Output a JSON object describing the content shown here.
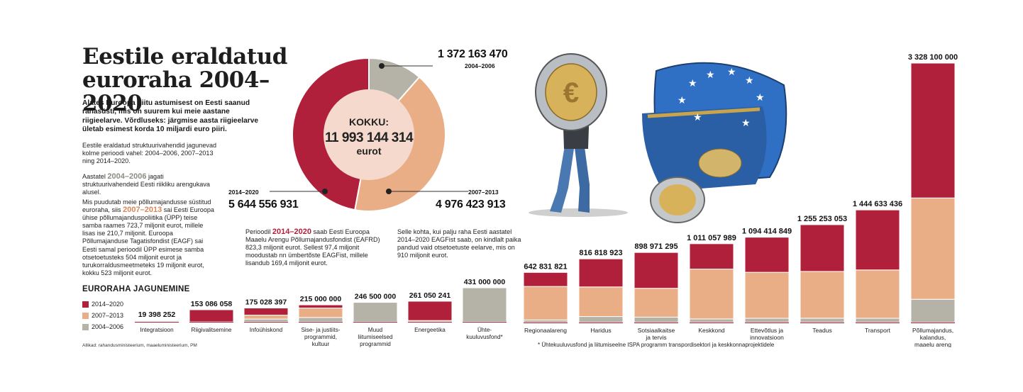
{
  "title": "Eestile eraldatud euroraha 2004–2020",
  "intro": "Alates Euroopa Liitu astumisest on Eesti saanud rahasüsti, mis on suurem kui meie aastane riigieelarve. Võrdluseks: järgmise aasta riigieelarve ületab esimest korda 10 miljardi euro piiri.",
  "p1": "Eestile eraldatud struktuurivahendid jagunevad kolme perioodi vahel: 2004–2006, 2007–2013 ning 2014–2020.",
  "p2": {
    "before": "Aastatel ",
    "highlight": "2004–2006",
    "after": " jagati struktuurivahendeid Eesti riikliku arengukava alusel."
  },
  "p3": {
    "before": "Mis puudutab meie põllumajandusse süstitud euroraha, siis ",
    "highlight": "2007–2013",
    "after": " sai Eesti Euroopa ühise põllumajanduspoliitika (ÜPP) teise samba raames 723,7 miljonit eurot, millele lisas ise 210,7 miljonit. Euroopa Põllumajanduse Tagatisfondist (EAGF) sai Eesti samal perioodil ÜPP esimese samba otsetoetusteks 504 miljonit eurot ja turukorraldusmeetmeteks 19 miljonit eurot, kokku  523 miljonit eurot."
  },
  "p4": {
    "before": "Perioodil ",
    "highlight": "2014–2020",
    "after": " saab Eesti Euroopa Maaelu Arengu Põllumajandusfondist (EAFRD) 823,3 miljonit eurot. Sellest 97,4 miljonit moodustab nn ümbertõste EAGFist, millele lisandub 169,4 miljonit eurot."
  },
  "p5": "Selle kohta, kui palju raha Eesti aastatel 2014–2020 EAGFist saab, on kindlalt paika pandud vaid otsetoetuste eelarve, mis on 910 miljonit eurot.",
  "breakdown_title": "EURORAHA JAGUNEMINE",
  "legend": [
    {
      "label": "2014–2020",
      "color": "#b0203a"
    },
    {
      "label": "2007–2013",
      "color": "#e9ae86"
    },
    {
      "label": "2004–2006",
      "color": "#b5b3a8"
    }
  ],
  "sources": "Allikad: rahandusministeerium, maaeluministeerium, PM",
  "footnote": "* Ühtekuuluvusfond ja liitumiseelne ISPA programm transpordisektori ja keskkonnaprojektidele",
  "donut": {
    "total_label": "KOKKU:",
    "total_value": "11 993 144 314",
    "unit": "eurot",
    "segments": [
      {
        "period": "2004–2006",
        "value": 1372163470,
        "label": "1 372 163 470",
        "color": "#b5b3a8"
      },
      {
        "period": "2007–2013",
        "value": 4976423913,
        "label": "4 976 423 913",
        "color": "#e9ae86"
      },
      {
        "period": "2014–2020",
        "value": 5644556931,
        "label": "5 644 556 931",
        "color": "#b0203a"
      }
    ]
  },
  "chart_data": [
    {
      "type": "bar",
      "stacked": true,
      "series_order": [
        "2004–2006",
        "2007–2013",
        "2014–2020"
      ],
      "categories": [
        "Integratsioon",
        "Riigivalitsemine",
        "Infoühiskond",
        "Sise- ja justiitsprogrammid, kultuur",
        "Muud liitumiseelsed programmid",
        "Energeetika",
        "Ühtekuuluvusfond*"
      ],
      "totals_labels": [
        "19 398 252",
        "153 086 058",
        "175 028 397",
        "215 000 000",
        "246 500 000",
        "261 050 241",
        "431 000 000"
      ],
      "series": [
        {
          "name": "2014–2020",
          "values": [
            9698252,
            153086058,
            90028397,
            40000000,
            0,
            245000000,
            0
          ]
        },
        {
          "name": "2007–2013",
          "values": [
            9700000,
            0,
            50000000,
            120000000,
            0,
            16050241,
            0
          ]
        },
        {
          "name": "2004–2006",
          "values": [
            0,
            0,
            35000000,
            55000000,
            246500000,
            0,
            431000000
          ]
        }
      ]
    },
    {
      "type": "bar",
      "stacked": true,
      "series_order": [
        "2004–2006",
        "2007–2013",
        "2014–2020"
      ],
      "categories": [
        "Regionaalareng",
        "Haridus",
        "Sotsiaalkaitse ja tervis",
        "Keskkond",
        "Ettevõtlus ja innovatsioon",
        "Teadus",
        "Transport",
        "Põllumajandus, kalandus, maaelu areng"
      ],
      "totals_labels": [
        "642 831 821",
        "816 818 923",
        "898 971 295",
        "1 011 057 989",
        "1 094 414 849",
        "1 255 253 053",
        "1 444 633 436",
        "3 328 100 000"
      ],
      "series": [
        {
          "name": "2014–2020",
          "values": [
            180000000,
            360000000,
            460000000,
            325000000,
            450000000,
            600000000,
            770000000,
            1730000000
          ]
        },
        {
          "name": "2007–2013",
          "values": [
            430000000,
            380000000,
            370000000,
            640000000,
            590000000,
            600000000,
            620000000,
            1300000000
          ]
        },
        {
          "name": "2004–2006",
          "values": [
            32831821,
            76818923,
            68971295,
            46057989,
            54414849,
            55253053,
            54633436,
            298100000
          ]
        }
      ]
    }
  ]
}
